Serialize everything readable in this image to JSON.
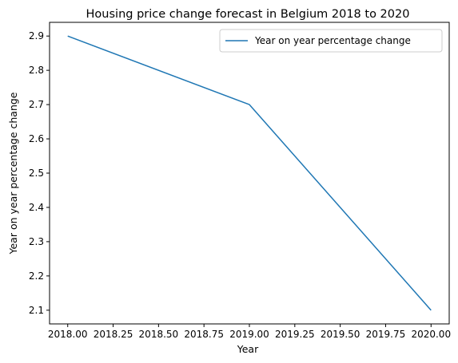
{
  "chart_data": {
    "type": "line",
    "title": "Housing price change forecast in Belgium 2018 to 2020",
    "xlabel": "Year",
    "ylabel": "Year on year percentage change",
    "x": [
      2018,
      2019,
      2020
    ],
    "series": [
      {
        "name": "Year on year percentage change",
        "values": [
          2.9,
          2.7,
          2.1
        ],
        "color": "#1f77b4"
      }
    ],
    "xlim": [
      2017.9,
      2020.1
    ],
    "ylim": [
      2.06,
      2.94
    ],
    "x_ticks": [
      2018.0,
      2018.25,
      2018.5,
      2018.75,
      2019.0,
      2019.25,
      2019.5,
      2019.75,
      2020.0
    ],
    "x_tick_labels": [
      "2018.00",
      "2018.25",
      "2018.50",
      "2018.75",
      "2019.00",
      "2019.25",
      "2019.50",
      "2019.75",
      "2020.00"
    ],
    "y_ticks": [
      2.1,
      2.2,
      2.3,
      2.4,
      2.5,
      2.6,
      2.7,
      2.8,
      2.9
    ],
    "y_tick_labels": [
      "2.1",
      "2.2",
      "2.3",
      "2.4",
      "2.5",
      "2.6",
      "2.7",
      "2.8",
      "2.9"
    ],
    "grid": false,
    "legend_position": "top-right"
  }
}
